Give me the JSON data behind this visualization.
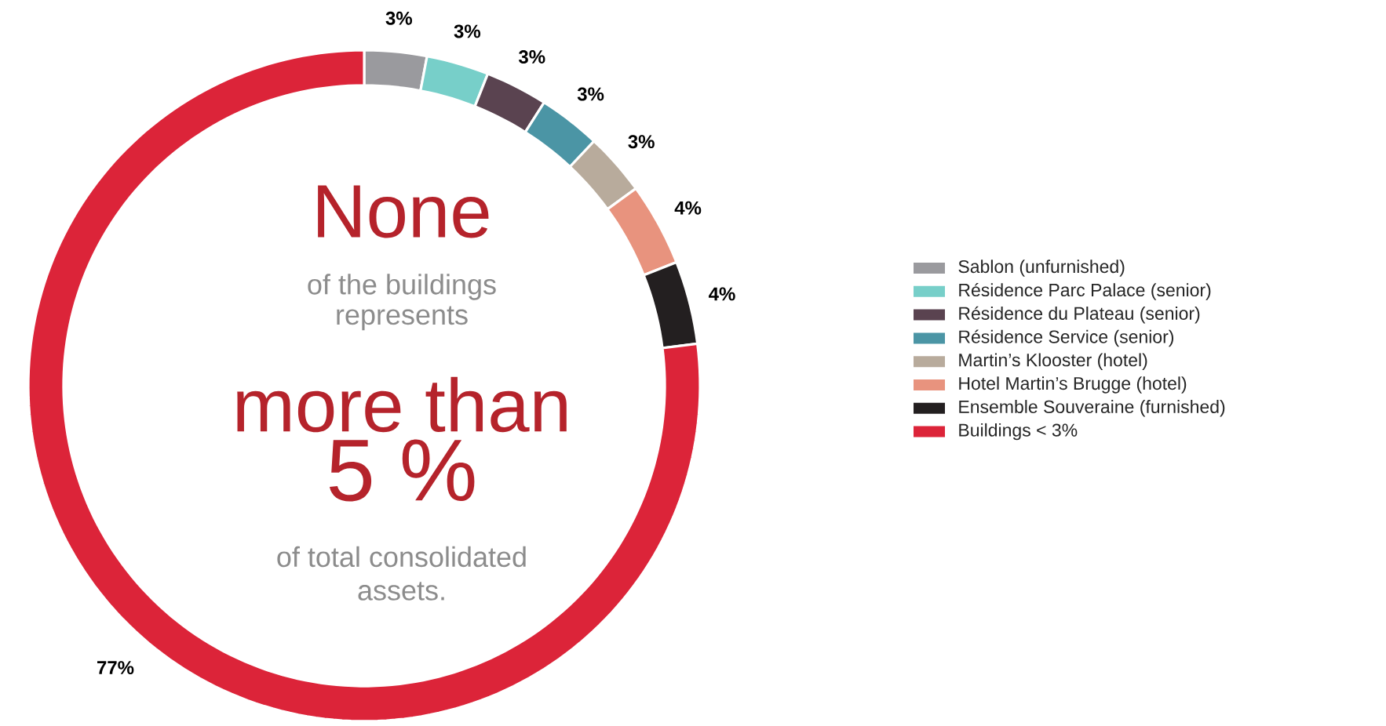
{
  "chart_data": {
    "type": "donut",
    "categories": [
      "Sablon (unfurnished)",
      "Résidence Parc Palace (senior)",
      "Résidence du Plateau (senior)",
      "Résidence Service (senior)",
      "Martin’s Klooster (hotel)",
      "Hotel Martin’s Brugge (hotel)",
      "Ensemble Souveraine (furnished)",
      "Buildings < 3%"
    ],
    "values": [
      3,
      3,
      3,
      3,
      3,
      4,
      4,
      77
    ],
    "value_labels": [
      "3%",
      "3%",
      "3%",
      "3%",
      "3%",
      "4%",
      "4%",
      "77%"
    ],
    "colors": [
      "#9a9a9e",
      "#77cfc9",
      "#5a4350",
      "#4b95a5",
      "#b8ab9c",
      "#e8937e",
      "#231f20",
      "#dc2439"
    ],
    "legend": "right",
    "annotations": [
      "None",
      "of the buildings",
      "represents",
      "more than",
      "5 %",
      "of total consolidated",
      "assets."
    ]
  }
}
